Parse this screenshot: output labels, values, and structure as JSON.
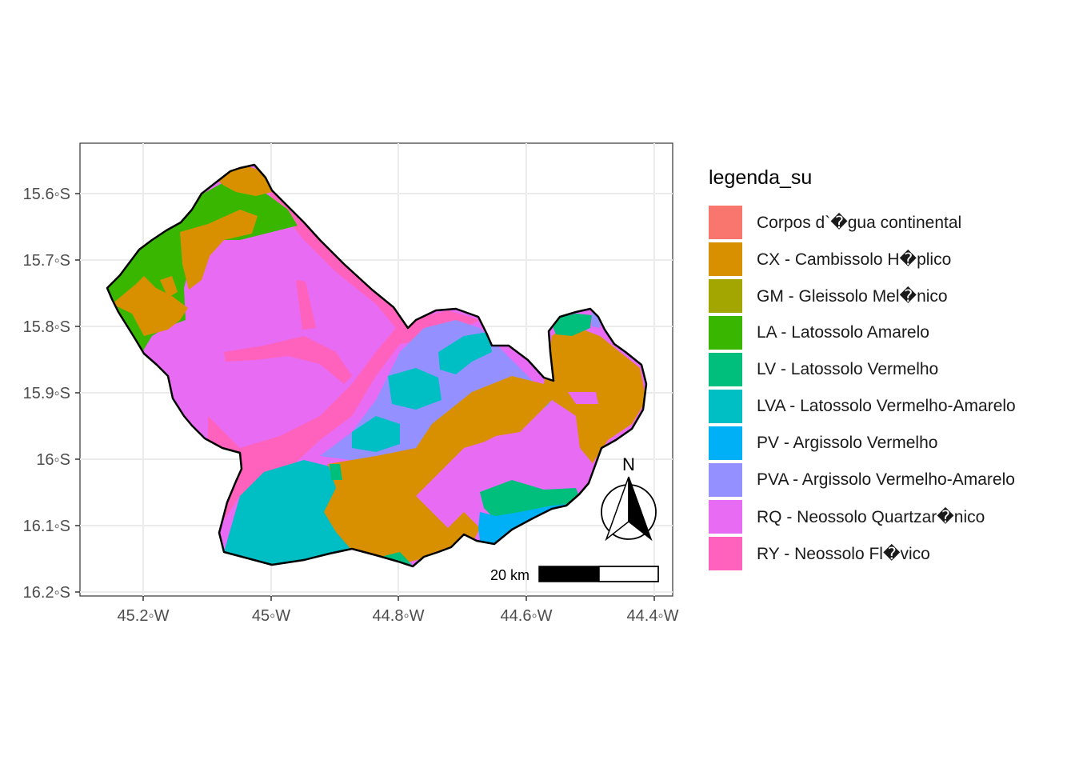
{
  "legend": {
    "title": "legenda_su",
    "items": [
      {
        "label": "Corpos d`�gua continental",
        "color": "#F8766D"
      },
      {
        "label": "CX - Cambissolo H�plico",
        "color": "#D89000"
      },
      {
        "label": "GM - Gleissolo Mel�nico",
        "color": "#A3A500"
      },
      {
        "label": "LA - Latossolo Amarelo",
        "color": "#39B600"
      },
      {
        "label": "LV - Latossolo Vermelho",
        "color": "#00BF7D"
      },
      {
        "label": "LVA - Latossolo Vermelho-Amarelo",
        "color": "#00BFC4"
      },
      {
        "label": "PV - Argissolo Vermelho",
        "color": "#00B0F6"
      },
      {
        "label": "PVA - Argissolo Vermelho-Amarelo",
        "color": "#9590FF"
      },
      {
        "label": "RQ - Neossolo Quartzar�nico",
        "color": "#E76BF3"
      },
      {
        "label": "RY - Neossolo Fl�vico",
        "color": "#FF62BC"
      }
    ]
  },
  "axes": {
    "x_ticks": [
      "45.2◦W",
      "45◦W",
      "44.8◦W",
      "44.6◦W",
      "44.4◦W"
    ],
    "y_ticks": [
      "15.6◦S",
      "15.7◦S",
      "15.8◦S",
      "15.9◦S",
      "16◦S",
      "16.1◦S",
      "16.2◦S"
    ]
  },
  "scale_bar": {
    "label": "20 km"
  },
  "north_arrow": {
    "label": "N"
  }
}
